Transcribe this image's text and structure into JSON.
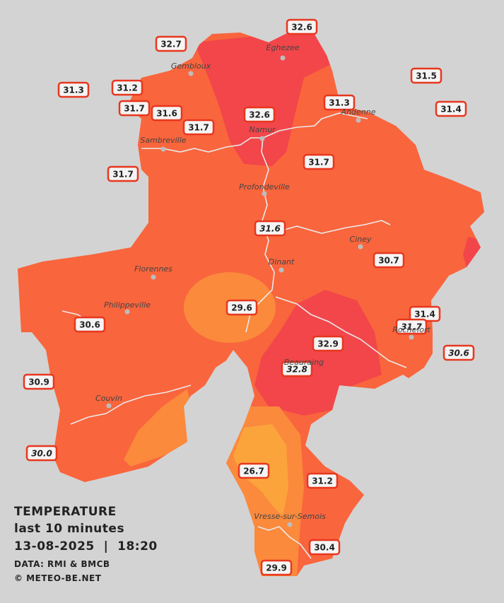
{
  "legend": {
    "title": "TEMPERATURE",
    "subtitle": "last 10 minutes",
    "datetime": "13-08-2025  |  18:20",
    "data_source": "DATA: RMI & BMCB",
    "copyright": "© METEO-BE.NET"
  },
  "colors": {
    "background": "#d3d3d3",
    "zone_base": "#f9653d",
    "zone_hot": "#f2464a",
    "zone_mild": "#fb8a3c",
    "zone_cool": "#fca43c",
    "river": "#eaeaea",
    "marker_border": "#e8361e"
  },
  "cities": [
    {
      "id": "eghezee",
      "name": "Eghezee"
    },
    {
      "id": "gembloux",
      "name": "Gembloux"
    },
    {
      "id": "andenne",
      "name": "Andenne"
    },
    {
      "id": "namur",
      "name": "Namur"
    },
    {
      "id": "sambreville",
      "name": "Sambreville"
    },
    {
      "id": "profondeville",
      "name": "Profondeville"
    },
    {
      "id": "ciney",
      "name": "Ciney"
    },
    {
      "id": "dinant",
      "name": "Dinant"
    },
    {
      "id": "florennes",
      "name": "Florennes"
    },
    {
      "id": "philippeville",
      "name": "Philippeville"
    },
    {
      "id": "rochefort",
      "name": "Rochefort"
    },
    {
      "id": "beauraing",
      "name": "Beauraing"
    },
    {
      "id": "couvin",
      "name": "Couvin"
    },
    {
      "id": "vresse",
      "name": "Vresse-sur-Semois"
    }
  ],
  "stations": [
    {
      "id": "s1",
      "value": "32.6"
    },
    {
      "id": "s2",
      "value": "32.7"
    },
    {
      "id": "s3",
      "value": "31.3"
    },
    {
      "id": "s4",
      "value": "31.2"
    },
    {
      "id": "s5",
      "value": "31.5"
    },
    {
      "id": "s6",
      "value": "31.7"
    },
    {
      "id": "s7",
      "value": "31.6"
    },
    {
      "id": "s8",
      "value": "32.6"
    },
    {
      "id": "s9",
      "value": "31.3"
    },
    {
      "id": "s10",
      "value": "31.4"
    },
    {
      "id": "s11",
      "value": "31.7"
    },
    {
      "id": "s12",
      "value": "31.7"
    },
    {
      "id": "s13",
      "value": "31.7"
    },
    {
      "id": "s14",
      "value": "31.6"
    },
    {
      "id": "s15",
      "value": "30.7"
    },
    {
      "id": "s16",
      "value": "29.6"
    },
    {
      "id": "s17",
      "value": "31.4"
    },
    {
      "id": "s18",
      "value": "31.7"
    },
    {
      "id": "s19",
      "value": "30.6"
    },
    {
      "id": "s20",
      "value": "32.9"
    },
    {
      "id": "s21",
      "value": "30.6"
    },
    {
      "id": "s22",
      "value": "32.8"
    },
    {
      "id": "s23",
      "value": "30.9"
    },
    {
      "id": "s24",
      "value": "30.0"
    },
    {
      "id": "s25",
      "value": "26.7"
    },
    {
      "id": "s26",
      "value": "31.2"
    },
    {
      "id": "s27",
      "value": "30.4"
    },
    {
      "id": "s28",
      "value": "29.9"
    }
  ]
}
